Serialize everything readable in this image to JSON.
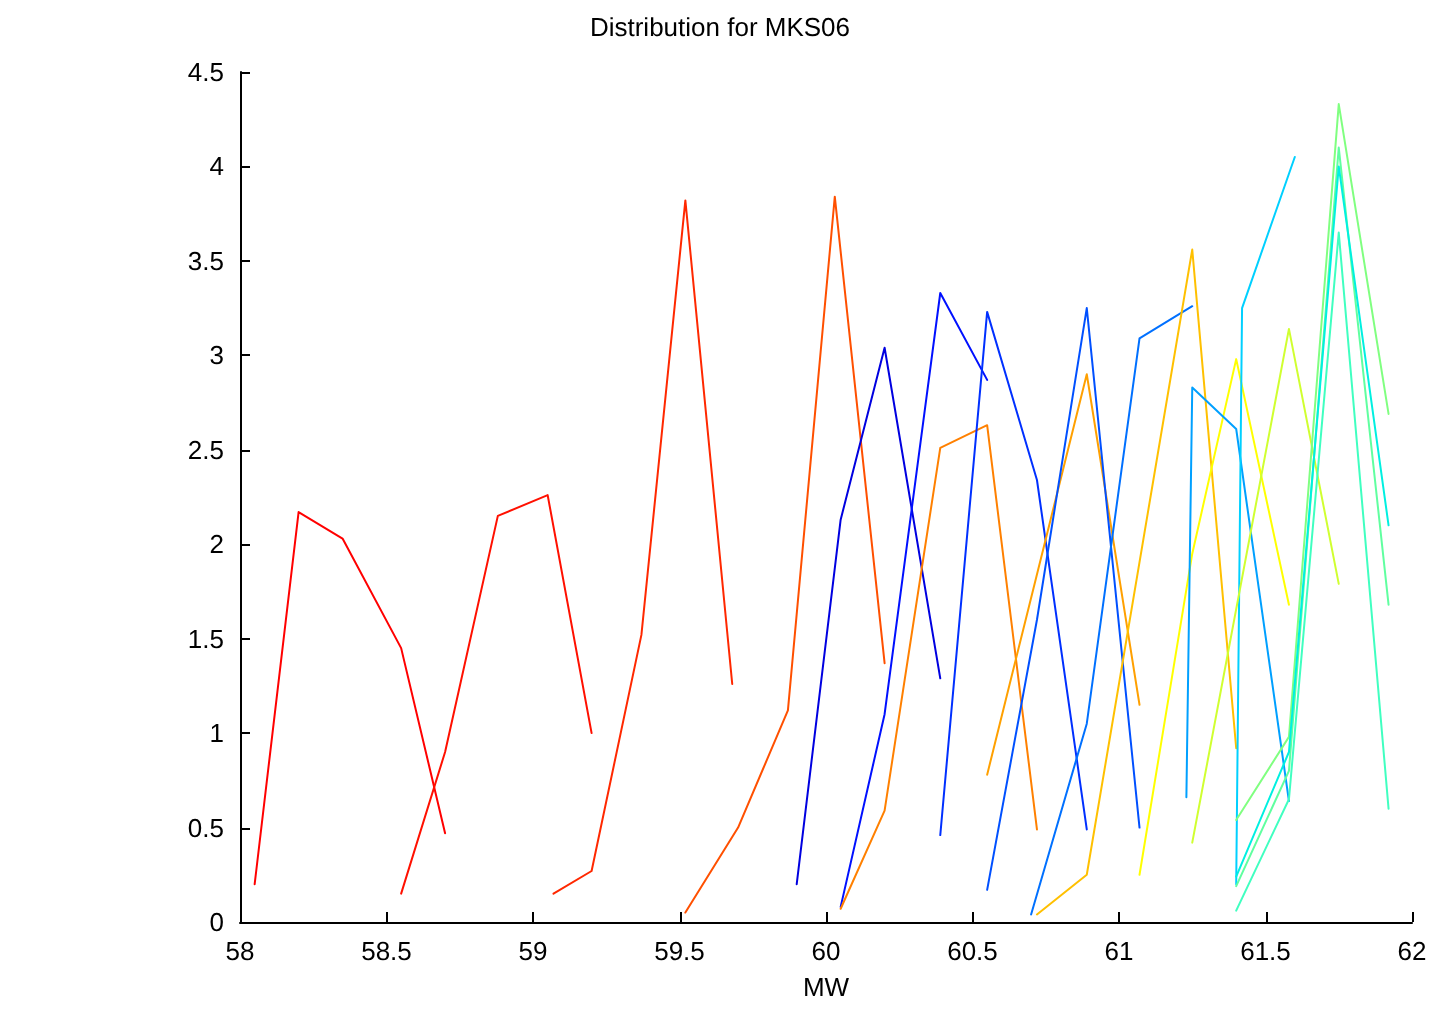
{
  "chart_data": {
    "type": "line",
    "title": "Distribution for MKS06",
    "xlabel": "MW",
    "marker": "none",
    "line_style": "solid",
    "grid": false,
    "xlim": [
      58,
      62
    ],
    "xticks": [
      58,
      58.5,
      59,
      59.5,
      60,
      60.5,
      61,
      61.5,
      62
    ],
    "ylim": [
      0,
      4.5
    ],
    "yticks": [
      0,
      0.5,
      1,
      1.5,
      2,
      2.5,
      3,
      3.5,
      4,
      4.5
    ],
    "series": [
      {
        "color": "#ff0000",
        "x": [
          58.05,
          58.2,
          58.35,
          58.55,
          58.7
        ],
        "values": [
          0.2,
          2.17,
          2.03,
          1.45,
          0.47
        ]
      },
      {
        "color": "#ff1000",
        "x": [
          58.55,
          58.7,
          58.88,
          59.05,
          59.2
        ],
        "values": [
          0.15,
          0.9,
          2.15,
          2.26,
          1.0
        ]
      },
      {
        "color": "#ff2800",
        "x": [
          59.07,
          59.2,
          59.37,
          59.52,
          59.68
        ],
        "values": [
          0.15,
          0.27,
          1.52,
          3.82,
          1.26
        ]
      },
      {
        "color": "#ff5000",
        "x": [
          59.52,
          59.7,
          59.87,
          60.03,
          60.2
        ],
        "values": [
          0.05,
          0.5,
          1.12,
          3.84,
          1.37
        ]
      },
      {
        "color": "#0000e0",
        "x": [
          59.9,
          60.05,
          60.2,
          60.39
        ],
        "values": [
          0.2,
          2.13,
          3.04,
          1.29
        ]
      },
      {
        "color": "#0010ff",
        "x": [
          60.05,
          60.2,
          60.39,
          60.55
        ],
        "values": [
          0.08,
          1.1,
          3.33,
          2.87
        ]
      },
      {
        "color": "#ff8000",
        "x": [
          60.05,
          60.2,
          60.39,
          60.55,
          60.72
        ],
        "values": [
          0.07,
          0.59,
          2.51,
          2.63,
          0.49
        ]
      },
      {
        "color": "#0030ff",
        "x": [
          60.39,
          60.55,
          60.72,
          60.89
        ],
        "values": [
          0.46,
          3.23,
          2.34,
          0.49
        ]
      },
      {
        "color": "#ffa000",
        "x": [
          60.55,
          60.89,
          61.07
        ],
        "values": [
          0.78,
          2.9,
          1.15
        ]
      },
      {
        "color": "#0050ff",
        "x": [
          60.55,
          60.72,
          60.89,
          61.07
        ],
        "values": [
          0.17,
          1.6,
          3.25,
          0.5
        ]
      },
      {
        "color": "#0070ff",
        "x": [
          60.7,
          60.89,
          61.07,
          61.25
        ],
        "values": [
          0.04,
          1.05,
          3.09,
          3.26
        ]
      },
      {
        "color": "#ffc000",
        "x": [
          60.72,
          60.89,
          61.25,
          61.4
        ],
        "values": [
          0.04,
          0.25,
          3.56,
          0.92
        ]
      },
      {
        "color": "#ffff00",
        "x": [
          61.07,
          61.25,
          61.4,
          61.58
        ],
        "values": [
          0.25,
          1.95,
          2.98,
          1.68
        ]
      },
      {
        "color": "#00a0ff",
        "x": [
          61.23,
          61.25,
          61.4,
          61.58
        ],
        "values": [
          0.66,
          2.83,
          2.61,
          0.64
        ]
      },
      {
        "color": "#00d0ff",
        "x": [
          61.4,
          61.42,
          61.6
        ],
        "values": [
          0.2,
          3.25,
          4.05
        ]
      },
      {
        "color": "#d0ff30",
        "x": [
          61.25,
          61.58,
          61.75
        ],
        "values": [
          0.42,
          3.14,
          1.79
        ]
      },
      {
        "color": "#80ff80",
        "x": [
          61.4,
          61.58,
          61.75,
          61.92
        ],
        "values": [
          0.54,
          0.98,
          4.33,
          2.69
        ]
      },
      {
        "color": "#60ffa0",
        "x": [
          61.4,
          61.58,
          61.75,
          61.92
        ],
        "values": [
          0.19,
          0.8,
          4.1,
          1.68
        ]
      },
      {
        "color": "#00f0e0",
        "x": [
          61.4,
          61.58,
          61.75,
          61.92
        ],
        "values": [
          0.24,
          0.9,
          4.0,
          2.1
        ]
      },
      {
        "color": "#40ffc0",
        "x": [
          61.4,
          61.58,
          61.75,
          61.92
        ],
        "values": [
          0.06,
          0.65,
          3.65,
          0.6
        ]
      }
    ]
  }
}
